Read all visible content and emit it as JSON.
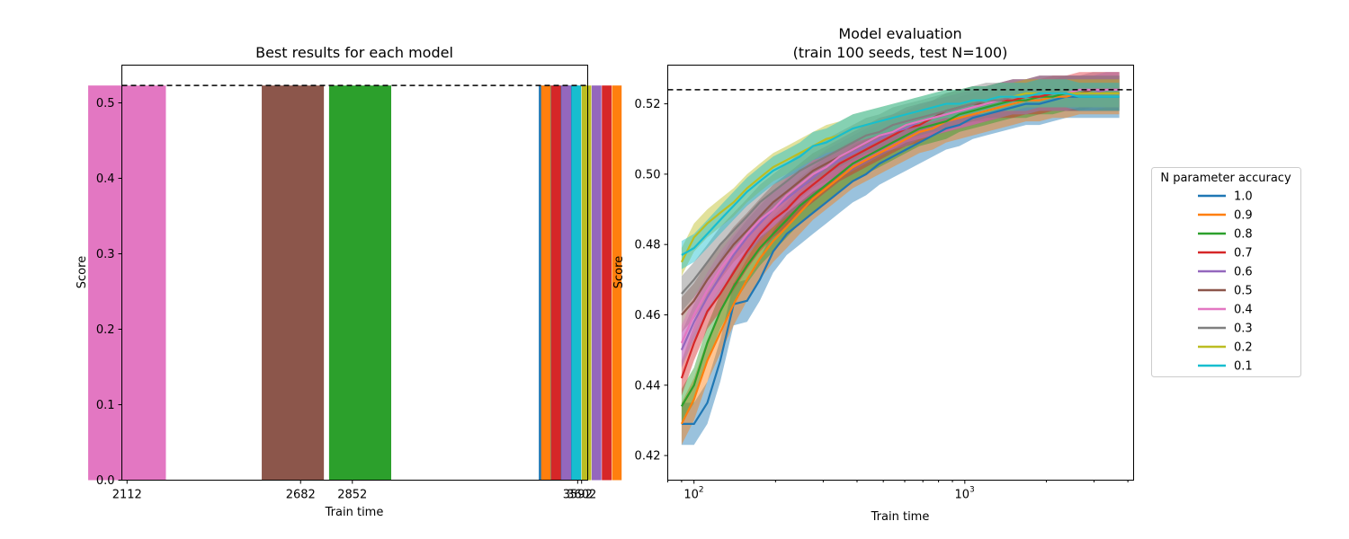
{
  "colors": {
    "1.0": "#1f77b4",
    "0.9": "#ff7f0e",
    "0.8": "#2ca02c",
    "0.7": "#d62728",
    "0.6": "#9467bd",
    "0.5": "#8c564b",
    "0.4": "#e377c2",
    "0.3": "#7f7f7f",
    "0.2": "#bcbd22",
    "0.1": "#17becf"
  },
  "chart_data": [
    {
      "type": "bar",
      "title": "Best results for each model",
      "xlabel": "Train time",
      "ylabel": "Score",
      "ylim": [
        0,
        0.55
      ],
      "yticks": [
        0.0,
        0.1,
        0.2,
        0.3,
        0.4,
        0.5
      ],
      "ytick_labels": [
        "0.0",
        "0.1",
        "0.2",
        "0.3",
        "0.4",
        "0.5"
      ],
      "xlim": [
        2095,
        3625
      ],
      "categories": [
        "2112",
        "2682",
        "2852",
        "3592",
        "3602"
      ],
      "reference_line": 0.523,
      "bars": [
        {
          "x": 2112,
          "value": 0.523,
          "group": "0.4"
        },
        {
          "x": 2682,
          "value": 0.523,
          "group": "0.5"
        },
        {
          "x": 2852,
          "value": 0.523,
          "group": "0.8"
        },
        {
          "x": 3592,
          "value": 0.523,
          "group": "1.0"
        },
        {
          "x": 3602,
          "value": 0.523,
          "group": "0.9"
        },
        {
          "x": 3602,
          "value": 0.523,
          "group": "0.7"
        },
        {
          "x": 3602,
          "value": 0.523,
          "group": "0.6"
        },
        {
          "x": 3602,
          "value": 0.523,
          "group": "0.1"
        },
        {
          "x": 3602,
          "value": 0.523,
          "group": "0.2"
        },
        {
          "x": 3602,
          "value": 0.523,
          "group": "0.6"
        },
        {
          "x": 3602,
          "value": 0.523,
          "group": "0.7"
        },
        {
          "x": 3602,
          "value": 0.523,
          "group": "0.9"
        }
      ]
    },
    {
      "type": "line",
      "title": "Model evaluation\n(train 100 seeds, test N=100)",
      "title_lines": [
        "Model evaluation",
        "(train 100 seeds, test N=100)"
      ],
      "xlabel": "Train time",
      "ylabel": "Score",
      "xscale": "log",
      "xlim": [
        80,
        4200
      ],
      "xticks": [
        100,
        1000
      ],
      "xtick_labels": [
        "10",
        "10"
      ],
      "xtick_exponents": [
        "2",
        "3"
      ],
      "ylim": [
        0.413,
        0.531
      ],
      "yticks": [
        0.42,
        0.44,
        0.46,
        0.48,
        0.5,
        0.52
      ],
      "ytick_labels": [
        "0.42",
        "0.44",
        "0.46",
        "0.48",
        "0.50",
        "0.52"
      ],
      "reference_line": 0.524,
      "legend_title": "N parameter accuracy",
      "legend_position": "outside-right",
      "x": [
        90,
        100,
        112,
        125,
        140,
        157,
        175,
        196,
        220,
        246,
        275,
        308,
        345,
        386,
        432,
        484,
        542,
        607,
        680,
        762,
        853,
        955,
        1070,
        1198,
        1342,
        1503,
        1683,
        1885,
        2111,
        2364,
        2648,
        2966,
        3322,
        3720
      ],
      "series": [
        {
          "name": "1.0",
          "band": 0.006,
          "values": [
            0.429,
            0.429,
            0.435,
            0.447,
            0.463,
            0.464,
            0.47,
            0.478,
            0.483,
            0.486,
            0.489,
            0.492,
            0.495,
            0.498,
            0.5,
            0.503,
            0.505,
            0.507,
            0.509,
            0.511,
            0.513,
            0.514,
            0.516,
            0.517,
            0.518,
            0.519,
            0.52,
            0.52,
            0.521,
            0.522,
            0.522,
            0.522,
            0.522,
            0.522
          ]
        },
        {
          "name": "0.9",
          "band": 0.006,
          "values": [
            0.429,
            0.436,
            0.447,
            0.455,
            0.463,
            0.47,
            0.476,
            0.481,
            0.485,
            0.489,
            0.493,
            0.496,
            0.499,
            0.502,
            0.504,
            0.506,
            0.508,
            0.51,
            0.512,
            0.513,
            0.515,
            0.516,
            0.517,
            0.518,
            0.519,
            0.52,
            0.521,
            0.521,
            0.522,
            0.522,
            0.523,
            0.523,
            0.523,
            0.523
          ]
        },
        {
          "name": "0.8",
          "band": 0.005,
          "values": [
            0.434,
            0.44,
            0.452,
            0.461,
            0.468,
            0.474,
            0.479,
            0.483,
            0.487,
            0.491,
            0.494,
            0.497,
            0.5,
            0.503,
            0.505,
            0.507,
            0.509,
            0.511,
            0.513,
            0.514,
            0.515,
            0.517,
            0.518,
            0.519,
            0.52,
            0.521,
            0.521,
            0.522,
            0.522,
            0.523,
            0.523,
            0.523,
            0.523,
            0.523
          ]
        },
        {
          "name": "0.7",
          "band": 0.005,
          "values": [
            0.442,
            0.452,
            0.461,
            0.466,
            0.472,
            0.478,
            0.483,
            0.487,
            0.49,
            0.494,
            0.497,
            0.5,
            0.503,
            0.505,
            0.507,
            0.509,
            0.511,
            0.513,
            0.514,
            0.516,
            0.517,
            0.518,
            0.519,
            0.52,
            0.521,
            0.521,
            0.522,
            0.522,
            0.523,
            0.523,
            0.523,
            0.523,
            0.523,
            0.523
          ]
        },
        {
          "name": "0.6",
          "band": 0.005,
          "values": [
            0.45,
            0.458,
            0.465,
            0.471,
            0.477,
            0.482,
            0.486,
            0.49,
            0.493,
            0.496,
            0.499,
            0.502,
            0.504,
            0.506,
            0.508,
            0.51,
            0.512,
            0.513,
            0.515,
            0.516,
            0.517,
            0.518,
            0.519,
            0.52,
            0.521,
            0.522,
            0.522,
            0.523,
            0.523,
            0.523,
            0.523,
            0.523,
            0.524,
            0.524
          ]
        },
        {
          "name": "0.5",
          "band": 0.005,
          "values": [
            0.46,
            0.464,
            0.47,
            0.475,
            0.48,
            0.484,
            0.488,
            0.492,
            0.495,
            0.498,
            0.501,
            0.503,
            0.505,
            0.507,
            0.509,
            0.511,
            0.512,
            0.514,
            0.515,
            0.516,
            0.518,
            0.519,
            0.52,
            0.52,
            0.521,
            0.522,
            0.522,
            0.523,
            0.523,
            0.523,
            0.523,
            0.524,
            0.524,
            0.524
          ]
        },
        {
          "name": "0.4",
          "band": 0.005,
          "values": [
            0.452,
            0.46,
            0.467,
            0.473,
            0.478,
            0.483,
            0.487,
            0.49,
            0.494,
            0.497,
            0.5,
            0.502,
            0.505,
            0.507,
            0.509,
            0.511,
            0.512,
            0.514,
            0.515,
            0.516,
            0.517,
            0.518,
            0.519,
            0.52,
            0.521,
            0.522,
            0.522,
            0.523,
            0.523,
            0.523,
            0.524,
            0.524,
            0.524,
            0.524
          ]
        },
        {
          "name": "0.3",
          "band": 0.005,
          "values": [
            0.466,
            0.47,
            0.475,
            0.48,
            0.484,
            0.488,
            0.492,
            0.495,
            0.498,
            0.501,
            0.503,
            0.505,
            0.507,
            0.509,
            0.511,
            0.512,
            0.514,
            0.515,
            0.516,
            0.517,
            0.518,
            0.519,
            0.52,
            0.521,
            0.521,
            0.522,
            0.522,
            0.523,
            0.523,
            0.523,
            0.523,
            0.523,
            0.523,
            0.523
          ]
        },
        {
          "name": "0.2",
          "band": 0.004,
          "values": [
            0.475,
            0.482,
            0.486,
            0.489,
            0.492,
            0.496,
            0.499,
            0.502,
            0.504,
            0.506,
            0.508,
            0.51,
            0.511,
            0.513,
            0.514,
            0.515,
            0.516,
            0.517,
            0.518,
            0.519,
            0.52,
            0.52,
            0.521,
            0.521,
            0.522,
            0.522,
            0.523,
            0.523,
            0.523,
            0.523,
            0.523,
            0.523,
            0.523,
            0.523
          ]
        },
        {
          "name": "0.1",
          "band": 0.004,
          "values": [
            0.477,
            0.479,
            0.483,
            0.487,
            0.491,
            0.495,
            0.498,
            0.501,
            0.503,
            0.505,
            0.508,
            0.509,
            0.511,
            0.513,
            0.514,
            0.515,
            0.516,
            0.517,
            0.518,
            0.519,
            0.52,
            0.52,
            0.521,
            0.521,
            0.522,
            0.522,
            0.522,
            0.523,
            0.523,
            0.523,
            0.522,
            0.522,
            0.522,
            0.522
          ]
        }
      ]
    }
  ]
}
